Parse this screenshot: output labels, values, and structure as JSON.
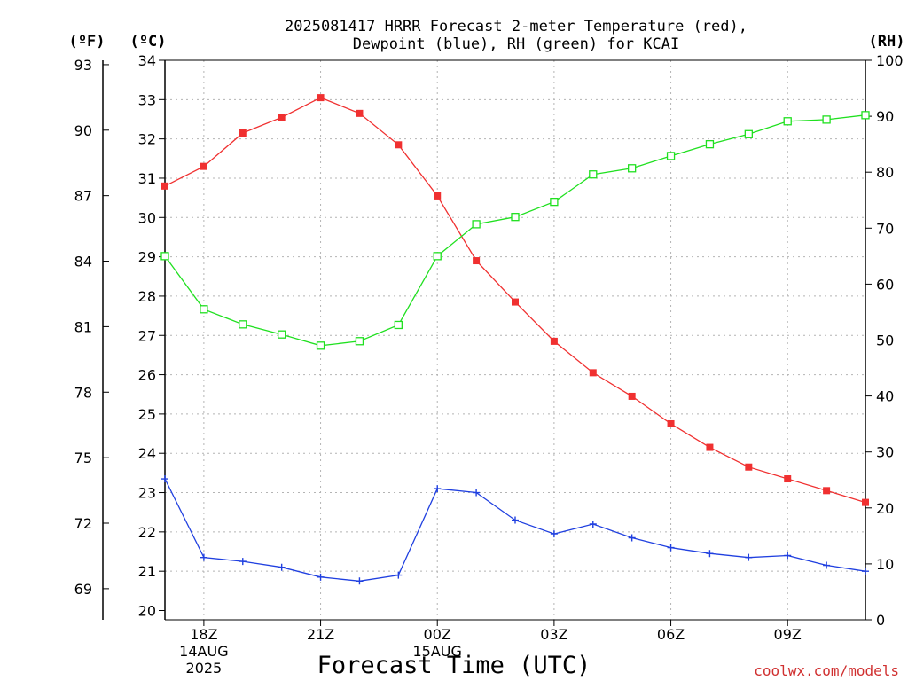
{
  "chart_data": {
    "type": "line",
    "title_lines": [
      "2025081417 HRRR Forecast 2-meter Temperature (red),",
      "Dewpoint (blue), RH (green) for KCAI"
    ],
    "xlabel": "Forecast Time (UTC)",
    "credit": "coolwx.com/models",
    "axis_units": {
      "fahrenheit": "(ºF)",
      "celsius": "(ºC)",
      "rh": "(RH)"
    },
    "x_hours": [
      17,
      18,
      19,
      20,
      21,
      22,
      23,
      24,
      25,
      26,
      27,
      28,
      29,
      30,
      31,
      32,
      33,
      34,
      35
    ],
    "x_ticks": [
      {
        "hour": 18,
        "lines": [
          "18Z",
          "14AUG",
          "2025"
        ]
      },
      {
        "hour": 21,
        "lines": [
          "21Z"
        ]
      },
      {
        "hour": 24,
        "lines": [
          "00Z",
          "15AUG"
        ]
      },
      {
        "hour": 27,
        "lines": [
          "03Z"
        ]
      },
      {
        "hour": 30,
        "lines": [
          "06Z"
        ]
      },
      {
        "hour": 33,
        "lines": [
          "09Z"
        ]
      }
    ],
    "x_range": [
      17,
      35
    ],
    "celsius_range": [
      20,
      34
    ],
    "celsius_ticks": [
      20,
      21,
      22,
      23,
      24,
      25,
      26,
      27,
      28,
      29,
      30,
      31,
      32,
      33,
      34
    ],
    "fahrenheit_ticks": [
      69,
      72,
      75,
      78,
      81,
      84,
      87,
      90,
      93
    ],
    "rh_range": [
      0,
      100
    ],
    "rh_ticks": [
      0,
      10,
      20,
      30,
      40,
      50,
      60,
      70,
      80,
      90,
      100
    ],
    "grid": true,
    "series": [
      {
        "name": "Temperature",
        "axis": "celsius",
        "color": "#f03030",
        "marker": "filled-square",
        "values": [
          30.8,
          31.3,
          32.15,
          32.55,
          33.05,
          32.65,
          31.85,
          30.55,
          28.9,
          27.85,
          26.85,
          26.05,
          25.45,
          24.75,
          24.15,
          23.65,
          23.35,
          23.05,
          22.75
        ]
      },
      {
        "name": "Dewpoint",
        "axis": "celsius",
        "color": "#2040e0",
        "marker": "plus",
        "values": [
          23.35,
          21.35,
          21.25,
          21.1,
          20.85,
          20.75,
          20.9,
          23.1,
          23.0,
          22.3,
          21.95,
          22.2,
          21.85,
          21.6,
          21.45,
          21.35,
          21.4,
          21.15,
          21.0
        ]
      },
      {
        "name": "RH",
        "axis": "rh",
        "color": "#20e020",
        "marker": "open-square",
        "values": [
          65,
          55.5,
          52.8,
          51,
          49,
          49.8,
          52.7,
          65,
          70.7,
          72,
          74.7,
          79.6,
          80.7,
          82.9,
          85,
          86.8,
          89.1,
          89.4,
          90.2
        ]
      }
    ]
  }
}
